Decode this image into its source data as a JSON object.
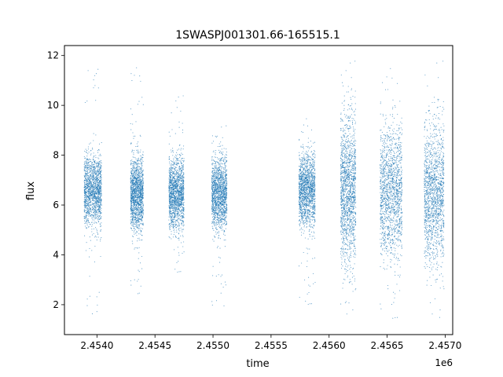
{
  "chart_data": {
    "type": "scatter",
    "title": "1SWASPJ001301.66-165515.1",
    "xlabel": "time",
    "ylabel": "flux",
    "x_offset_label": "1e6",
    "xlim": [
      2453720,
      2457065
    ],
    "ylim": [
      0.8,
      12.4
    ],
    "x_ticks": [
      2453990,
      2454390,
      2454790,
      2455190,
      2455590,
      2455990,
      2456390,
      2456790
    ],
    "x_tick_labels": [
      "2.4540",
      "2.4545",
      "2.4550",
      "2.4555",
      "2.4560",
      "2.4565",
      "2.4570"
    ],
    "x_tick_values": [
      2454000,
      2454500,
      2455000,
      2455500,
      2456000,
      2456500,
      2457000
    ],
    "y_tick_values": [
      2,
      4,
      6,
      8,
      10,
      12
    ],
    "y_tick_labels": [
      "2",
      "4",
      "6",
      "8",
      "10",
      "12"
    ],
    "grid": false,
    "marker_color": "#1f77b4",
    "series": [
      {
        "seasons": [
          {
            "start": 2453890,
            "end": 2454040,
            "center": 6.55,
            "spread": 0.7,
            "min": 1.6,
            "max": 11.7
          },
          {
            "start": 2454290,
            "end": 2454400,
            "center": 6.45,
            "spread": 0.7,
            "min": 2.3,
            "max": 11.8
          },
          {
            "start": 2454620,
            "end": 2454750,
            "center": 6.45,
            "spread": 0.7,
            "min": 3.2,
            "max": 10.4
          },
          {
            "start": 2454990,
            "end": 2455120,
            "center": 6.45,
            "spread": 0.7,
            "min": 1.6,
            "max": 9.2
          },
          {
            "start": 2455740,
            "end": 2455880,
            "center": 6.6,
            "spread": 0.7,
            "min": 1.9,
            "max": 9.7
          },
          {
            "start": 2456100,
            "end": 2456230,
            "center": 6.6,
            "spread": 1.45,
            "min": 1.3,
            "max": 11.8
          },
          {
            "start": 2456440,
            "end": 2456630,
            "center": 6.5,
            "spread": 1.25,
            "min": 1.3,
            "max": 11.8
          },
          {
            "start": 2456820,
            "end": 2456990,
            "center": 6.45,
            "spread": 1.35,
            "min": 1.3,
            "max": 11.8
          }
        ]
      }
    ]
  }
}
